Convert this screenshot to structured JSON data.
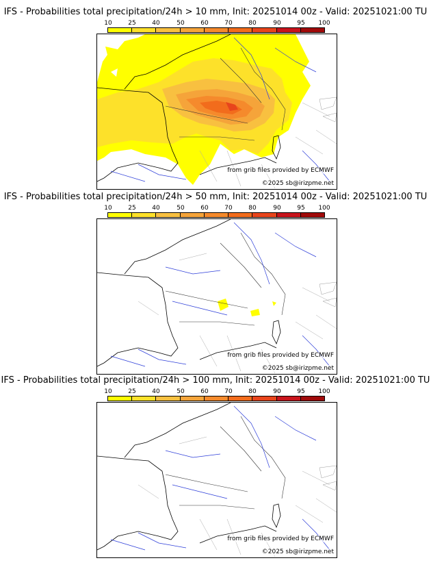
{
  "legend": {
    "ticks": [
      "10",
      "25",
      "40",
      "50",
      "60",
      "70",
      "80",
      "90",
      "95",
      "100"
    ],
    "colors": [
      "#ffff00",
      "#fde12a",
      "#f8c040",
      "#f5a43a",
      "#f58a2c",
      "#f26c1c",
      "#e8451c",
      "#c8141c",
      "#a00a0a",
      "#6a0000"
    ]
  },
  "map_credit": "from grib files provided by ECMWF",
  "map_copyright": "©2025 sb@irizpme.net",
  "panels": [
    {
      "title": "IFS - Probabilities total precipitation/24h > 10 mm, Init: 20251014 00z - Valid: 20251021:00 TU",
      "threshold_mm": 10
    },
    {
      "title": "IFS - Probabilities total precipitation/24h > 50 mm, Init: 20251014 00z - Valid: 20251021:00 TU",
      "threshold_mm": 50
    },
    {
      "title": "IFS - Probabilities total precipitation/24h > 100 mm, Init: 20251014 00z - Valid: 20251021:00 TU",
      "threshold_mm": 100
    }
  ]
}
